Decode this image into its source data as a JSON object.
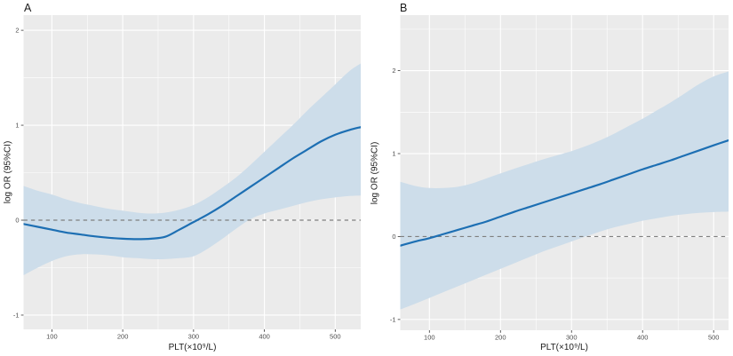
{
  "figure": {
    "background": "#ffffff",
    "description_visible_text_only": true
  },
  "style": {
    "panel_bg": "#ebebeb",
    "grid_major": "#ffffff",
    "grid_minor": "#f7f7f7",
    "band": "#cdddea",
    "line": "#1d6fb3",
    "ref_line": "#7f7f7f",
    "tick_mark": "#333333",
    "tick_text": "#4d4d4d",
    "title_text": "#1a1a1a"
  },
  "chart_data": [
    {
      "type": "line",
      "panel_label": "A",
      "xlabel": "PLT(×10⁹/L)",
      "ylabel": "log OR (95%CI)",
      "legend": "none",
      "grid": true,
      "reference_line_y": 0,
      "xlim": [
        60,
        536
      ],
      "ylim": [
        -1.15,
        2.16
      ],
      "x_ticks": [
        100,
        200,
        300,
        400,
        500
      ],
      "x_tick_labels": [
        "100",
        "200",
        "300",
        "400",
        "500"
      ],
      "y_ticks": [
        2,
        1,
        0,
        -1
      ],
      "y_tick_labels": [
        "2",
        "1",
        "0",
        "-1"
      ],
      "x_minor": [
        150,
        250,
        350,
        450
      ],
      "y_minor": [
        1.5,
        0.5,
        -0.5
      ],
      "x": [
        60,
        80,
        100,
        120,
        140,
        160,
        180,
        200,
        220,
        240,
        260,
        280,
        300,
        320,
        340,
        360,
        380,
        400,
        420,
        440,
        460,
        480,
        500,
        520,
        536
      ],
      "series": [
        {
          "name": "fit",
          "values": [
            -0.04,
            -0.07,
            -0.1,
            -0.13,
            -0.15,
            -0.17,
            -0.185,
            -0.195,
            -0.2,
            -0.195,
            -0.175,
            -0.1,
            -0.02,
            0.06,
            0.15,
            0.25,
            0.35,
            0.45,
            0.55,
            0.65,
            0.74,
            0.83,
            0.9,
            0.95,
            0.98
          ]
        },
        {
          "name": "ci_upper",
          "values": [
            0.36,
            0.31,
            0.27,
            0.22,
            0.18,
            0.15,
            0.12,
            0.1,
            0.08,
            0.07,
            0.08,
            0.11,
            0.16,
            0.24,
            0.34,
            0.45,
            0.58,
            0.72,
            0.86,
            1.0,
            1.15,
            1.29,
            1.43,
            1.57,
            1.65
          ]
        },
        {
          "name": "ci_lower",
          "values": [
            -0.58,
            -0.5,
            -0.43,
            -0.38,
            -0.36,
            -0.36,
            -0.37,
            -0.39,
            -0.4,
            -0.41,
            -0.41,
            -0.4,
            -0.38,
            -0.3,
            -0.2,
            -0.09,
            0.01,
            0.07,
            0.11,
            0.15,
            0.19,
            0.22,
            0.24,
            0.255,
            0.26
          ]
        }
      ]
    },
    {
      "type": "line",
      "panel_label": "B",
      "xlabel": "PLT(×10⁹/L)",
      "ylabel": "log OR (95%CI)",
      "legend": "none",
      "grid": true,
      "reference_line_y": 0,
      "xlim": [
        59,
        521
      ],
      "ylim": [
        -1.13,
        2.67
      ],
      "x_ticks": [
        100,
        200,
        300,
        400,
        500
      ],
      "x_tick_labels": [
        "100",
        "200",
        "300",
        "400",
        "500"
      ],
      "y_ticks": [
        2,
        1,
        0,
        -1
      ],
      "y_tick_labels": [
        "2",
        "1",
        "0",
        "-1"
      ],
      "x_minor": [
        150,
        250,
        350,
        450
      ],
      "y_minor": [
        2.5,
        1.5,
        0.5,
        -0.5
      ],
      "x": [
        59,
        80,
        100,
        120,
        140,
        160,
        180,
        200,
        220,
        240,
        260,
        280,
        300,
        320,
        340,
        360,
        380,
        400,
        420,
        440,
        460,
        480,
        500,
        521
      ],
      "series": [
        {
          "name": "fit",
          "values": [
            -0.11,
            -0.06,
            -0.02,
            0.03,
            0.08,
            0.13,
            0.18,
            0.24,
            0.3,
            0.355,
            0.41,
            0.465,
            0.52,
            0.575,
            0.63,
            0.69,
            0.75,
            0.81,
            0.865,
            0.92,
            0.98,
            1.04,
            1.1,
            1.16
          ]
        },
        {
          "name": "ci_upper",
          "values": [
            0.66,
            0.61,
            0.585,
            0.585,
            0.6,
            0.64,
            0.7,
            0.76,
            0.82,
            0.875,
            0.93,
            0.98,
            1.03,
            1.09,
            1.16,
            1.24,
            1.33,
            1.42,
            1.52,
            1.62,
            1.73,
            1.84,
            1.93,
            1.99
          ]
        },
        {
          "name": "ci_lower",
          "values": [
            -0.88,
            -0.81,
            -0.74,
            -0.67,
            -0.6,
            -0.53,
            -0.46,
            -0.39,
            -0.32,
            -0.25,
            -0.18,
            -0.12,
            -0.06,
            0.0,
            0.06,
            0.11,
            0.15,
            0.19,
            0.22,
            0.25,
            0.27,
            0.285,
            0.295,
            0.3
          ]
        }
      ]
    }
  ]
}
